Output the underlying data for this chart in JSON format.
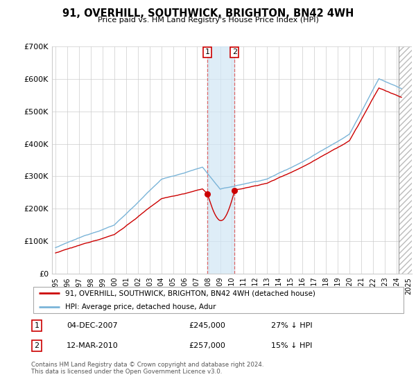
{
  "title": "91, OVERHILL, SOUTHWICK, BRIGHTON, BN42 4WH",
  "subtitle": "Price paid vs. HM Land Registry's House Price Index (HPI)",
  "footer": "Contains HM Land Registry data © Crown copyright and database right 2024.\nThis data is licensed under the Open Government Licence v3.0.",
  "legend_line1": "91, OVERHILL, SOUTHWICK, BRIGHTON, BN42 4WH (detached house)",
  "legend_line2": "HPI: Average price, detached house, Adur",
  "sale1_label": "1",
  "sale1_date": "04-DEC-2007",
  "sale1_price": "£245,000",
  "sale1_hpi": "27% ↓ HPI",
  "sale2_label": "2",
  "sale2_date": "12-MAR-2010",
  "sale2_price": "£257,000",
  "sale2_hpi": "15% ↓ HPI",
  "hpi_color": "#7ab4d8",
  "price_color": "#cc0000",
  "sale_marker_color": "#cc0000",
  "vline1_color": "#cc0000",
  "vline2_color": "#cc0000",
  "shade_color": "#d0e6f5",
  "ylim": [
    0,
    700000
  ],
  "yticks": [
    0,
    100000,
    200000,
    300000,
    400000,
    500000,
    600000,
    700000
  ],
  "ytick_labels": [
    "£0",
    "£100K",
    "£200K",
    "£300K",
    "£400K",
    "£500K",
    "£600K",
    "£700K"
  ],
  "sale1_x": 2007.92,
  "sale1_y": 245000,
  "sale2_x": 2010.22,
  "sale2_y": 257000,
  "xmin": 1995.0,
  "xmax": 2025.3,
  "hatch_start": 2024.17
}
